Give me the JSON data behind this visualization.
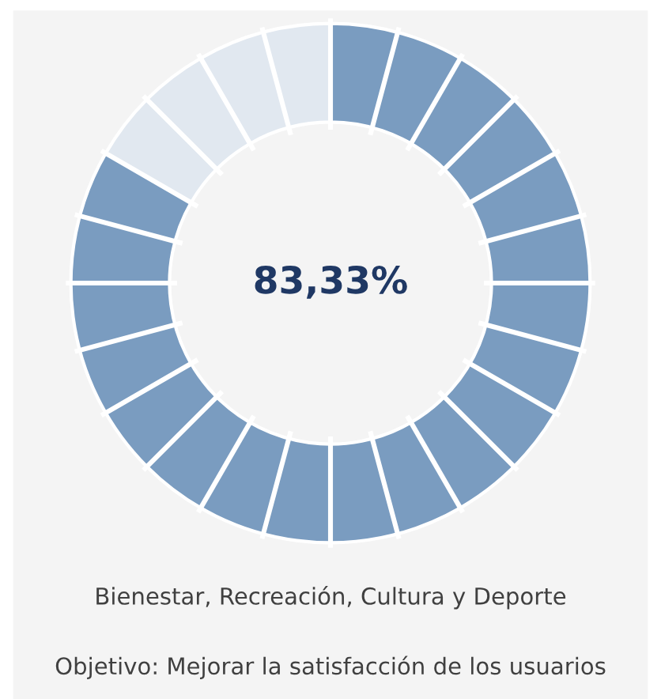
{
  "chart_data": {
    "type": "donut",
    "categories": [
      null,
      null
    ],
    "values": [
      83.33,
      16.67
    ],
    "colors": [
      "#7a9cc0",
      "#e1e8f0"
    ],
    "value_labels": [
      "83,33%",
      null
    ],
    "annotations": [
      "Bienestar, Recreación, Cultura y Deporte",
      "Objetivo: Mejorar la satisfacción de los usuarios"
    ]
  }
}
